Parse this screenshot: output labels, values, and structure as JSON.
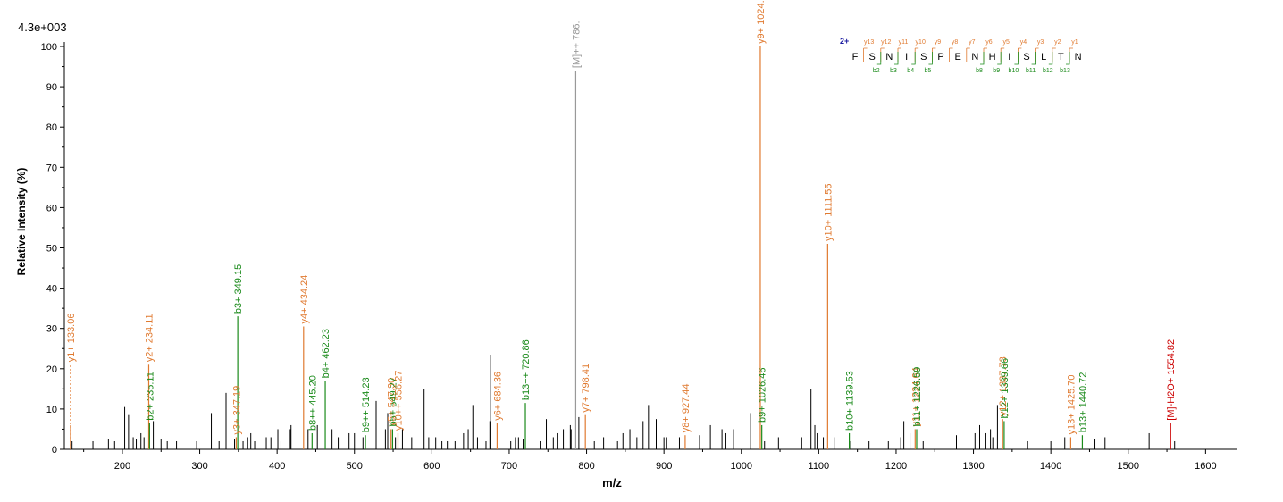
{
  "max_intensity_label": "4.3e+003",
  "chart_data": {
    "type": "bar",
    "title": "",
    "xlabel": "m/z",
    "ylabel": "Relative   Intensity (%)",
    "xlim": [
      125,
      1640
    ],
    "ylim": [
      0,
      100
    ],
    "x_ticks": [
      200,
      300,
      400,
      500,
      600,
      700,
      800,
      900,
      1000,
      1100,
      1200,
      1300,
      1400,
      1500,
      1600
    ],
    "y_ticks": [
      0,
      10,
      20,
      30,
      40,
      50,
      60,
      70,
      80,
      90,
      100
    ],
    "grid": false,
    "colors": {
      "b_ion": "#1a8a1a",
      "y_ion": "#e07a30",
      "precursor": "#999999",
      "neutral_loss": "#cc0000",
      "unassigned": "#000000"
    },
    "unassigned_peaks": [
      [
        135,
        2
      ],
      [
        162,
        2
      ],
      [
        182,
        2.5
      ],
      [
        190,
        2
      ],
      [
        203,
        10.5
      ],
      [
        208,
        8.5
      ],
      [
        214,
        3
      ],
      [
        218,
        2.5
      ],
      [
        224,
        4
      ],
      [
        228,
        3
      ],
      [
        240,
        7
      ],
      [
        250,
        2.5
      ],
      [
        258,
        2
      ],
      [
        270,
        2
      ],
      [
        296,
        2
      ],
      [
        315,
        9
      ],
      [
        325,
        2
      ],
      [
        334,
        14
      ],
      [
        345,
        2.5
      ],
      [
        356,
        2
      ],
      [
        362,
        3
      ],
      [
        366,
        4
      ],
      [
        371,
        2
      ],
      [
        386,
        3
      ],
      [
        392,
        3
      ],
      [
        401,
        5
      ],
      [
        405,
        2
      ],
      [
        417,
        5
      ],
      [
        418,
        6
      ],
      [
        440,
        5
      ],
      [
        452,
        6
      ],
      [
        471,
        5
      ],
      [
        479,
        3
      ],
      [
        493,
        4
      ],
      [
        500,
        4
      ],
      [
        511,
        3
      ],
      [
        528,
        12
      ],
      [
        540,
        5
      ],
      [
        543,
        9
      ],
      [
        553,
        3
      ],
      [
        562,
        5
      ],
      [
        574,
        3
      ],
      [
        590,
        15
      ],
      [
        596,
        3
      ],
      [
        605,
        3
      ],
      [
        613,
        2
      ],
      [
        620,
        2
      ],
      [
        630,
        2
      ],
      [
        641,
        4
      ],
      [
        647,
        5
      ],
      [
        653,
        11
      ],
      [
        659,
        3
      ],
      [
        670,
        2
      ],
      [
        675,
        7
      ],
      [
        676,
        23.5
      ],
      [
        702,
        2
      ],
      [
        708,
        3
      ],
      [
        712,
        3
      ],
      [
        718,
        2.5
      ],
      [
        740,
        2
      ],
      [
        748,
        7.5
      ],
      [
        757,
        3
      ],
      [
        762,
        4
      ],
      [
        763,
        6
      ],
      [
        770,
        5
      ],
      [
        779,
        6
      ],
      [
        780,
        5
      ],
      [
        790,
        8
      ],
      [
        810,
        2
      ],
      [
        822,
        3
      ],
      [
        840,
        2
      ],
      [
        847,
        4
      ],
      [
        856,
        5
      ],
      [
        865,
        3
      ],
      [
        873,
        7
      ],
      [
        880,
        11
      ],
      [
        890,
        7.5
      ],
      [
        900,
        3
      ],
      [
        903,
        3
      ],
      [
        920,
        3
      ],
      [
        946,
        3.5
      ],
      [
        960,
        6
      ],
      [
        975,
        5
      ],
      [
        980,
        4
      ],
      [
        990,
        5
      ],
      [
        1012,
        9
      ],
      [
        1030,
        2
      ],
      [
        1048,
        3
      ],
      [
        1078,
        3
      ],
      [
        1090,
        15
      ],
      [
        1095,
        6
      ],
      [
        1098,
        4
      ],
      [
        1106,
        3
      ],
      [
        1120,
        3
      ],
      [
        1140,
        2
      ],
      [
        1165,
        2
      ],
      [
        1190,
        2
      ],
      [
        1206,
        3
      ],
      [
        1210,
        7
      ],
      [
        1218,
        4
      ],
      [
        1235,
        2
      ],
      [
        1278,
        3.5
      ],
      [
        1302,
        4
      ],
      [
        1308,
        6
      ],
      [
        1316,
        4
      ],
      [
        1322,
        5
      ],
      [
        1325,
        3
      ],
      [
        1331,
        11
      ],
      [
        1370,
        2
      ],
      [
        1400,
        2
      ],
      [
        1418,
        3
      ],
      [
        1457,
        2.5
      ],
      [
        1470,
        3
      ],
      [
        1527,
        4
      ],
      [
        1560,
        2
      ]
    ],
    "annotated_peaks": [
      {
        "mz": 133.06,
        "intensity": 21,
        "label": "y1+ 133.06",
        "ion": "y",
        "dashed": true
      },
      {
        "mz": 133.06,
        "intensity": 6,
        "label": "",
        "ion": "y",
        "dashed": false
      },
      {
        "mz": 234.11,
        "intensity": 21,
        "label": "y2+ 234.11",
        "ion": "y",
        "dashed": false
      },
      {
        "mz": 235.11,
        "intensity": 6.5,
        "label": "b2+ 235.11",
        "ion": "b",
        "dashed": false
      },
      {
        "mz": 347.19,
        "intensity": 3,
        "label": "y3+ 347.19",
        "ion": "y",
        "dashed": false
      },
      {
        "mz": 349.15,
        "intensity": 33,
        "label": "b3+ 349.15",
        "ion": "b",
        "dashed": false
      },
      {
        "mz": 434.24,
        "intensity": 30.5,
        "label": "y4+ 434.24",
        "ion": "y",
        "dashed": false
      },
      {
        "mz": 445.2,
        "intensity": 4,
        "label": "b8++ 445.20",
        "ion": "b",
        "dashed": false
      },
      {
        "mz": 462.23,
        "intensity": 17,
        "label": "b4+ 462.23",
        "ion": "b",
        "dashed": false
      },
      {
        "mz": 514.23,
        "intensity": 3.5,
        "label": "b9++ 514.23",
        "ion": "b",
        "dashed": false
      },
      {
        "mz": 547.3,
        "intensity": 5,
        "label": "y5+ 547.30",
        "ion": "y",
        "dashed": false
      },
      {
        "mz": 549.27,
        "intensity": 5,
        "label": "b5+ 549.27",
        "ion": "b",
        "dashed": false
      },
      {
        "mz": 556.27,
        "intensity": 4,
        "label": "y10++ 556.27",
        "ion": "y",
        "dashed": false
      },
      {
        "mz": 684.36,
        "intensity": 6.5,
        "label": "y6+ 684.36",
        "ion": "y",
        "dashed": false
      },
      {
        "mz": 720.86,
        "intensity": 11.5,
        "label": "b13++ 720.86",
        "ion": "b",
        "dashed": false
      },
      {
        "mz": 786.0,
        "intensity": 94,
        "label": "[M]++ 786.",
        "ion": "precursor",
        "dashed": false
      },
      {
        "mz": 798.41,
        "intensity": 8.5,
        "label": "y7+ 798.41",
        "ion": "y",
        "dashed": false
      },
      {
        "mz": 927.44,
        "intensity": 3.5,
        "label": "y8+ 927.44",
        "ion": "y",
        "dashed": false
      },
      {
        "mz": 1024.5,
        "intensity": 100,
        "label": "y9+ 1024.50",
        "ion": "y",
        "dashed": false
      },
      {
        "mz": 1026.46,
        "intensity": 6,
        "label": "b9+ 1026.46",
        "ion": "b",
        "dashed": false
      },
      {
        "mz": 1111.55,
        "intensity": 51,
        "label": "y10+ 1111.55",
        "ion": "y",
        "dashed": false
      },
      {
        "mz": 1139.53,
        "intensity": 4,
        "label": "b10+ 1139.53",
        "ion": "b",
        "dashed": false
      },
      {
        "mz": 1224.64,
        "intensity": 5,
        "label": "y11+ 1224.64",
        "ion": "y",
        "dashed": false
      },
      {
        "mz": 1226.59,
        "intensity": 5,
        "label": "b11+ 1226.59",
        "ion": "b",
        "dashed": false
      },
      {
        "mz": 1337.73,
        "intensity": 7.5,
        "label": "y12+ 1337.73",
        "ion": "y",
        "dashed": false
      },
      {
        "mz": 1339.66,
        "intensity": 7,
        "label": "b12+ 1339.66",
        "ion": "b",
        "dashed": false
      },
      {
        "mz": 1425.7,
        "intensity": 3,
        "label": "y13+ 1425.70",
        "ion": "y",
        "dashed": false
      },
      {
        "mz": 1440.72,
        "intensity": 3.5,
        "label": "b13+ 1440.72",
        "ion": "b",
        "dashed": false
      },
      {
        "mz": 1554.82,
        "intensity": 6.5,
        "label": "[M]-H2O+ 1554.82",
        "ion": "neutral_loss",
        "dashed": false
      }
    ]
  },
  "sequence_map": {
    "charge": "2+",
    "residues": [
      "F",
      "S",
      "N",
      "I",
      "S",
      "P",
      "E",
      "N",
      "H",
      "I",
      "S",
      "L",
      "T",
      "N"
    ],
    "y_labels": [
      "y13",
      "y12",
      "y11",
      "y10",
      "y9",
      "y8",
      "y7",
      "y6",
      "y5",
      "y4",
      "y3",
      "y2",
      "y1"
    ],
    "b_labels": [
      "b2",
      "b3",
      "b4",
      "b5",
      "",
      "",
      "b8",
      "b9",
      "b10",
      "b11",
      "b12",
      "b13"
    ],
    "b_positions": [
      1,
      2,
      3,
      4,
      7,
      8,
      9,
      10,
      11,
      12
    ]
  }
}
